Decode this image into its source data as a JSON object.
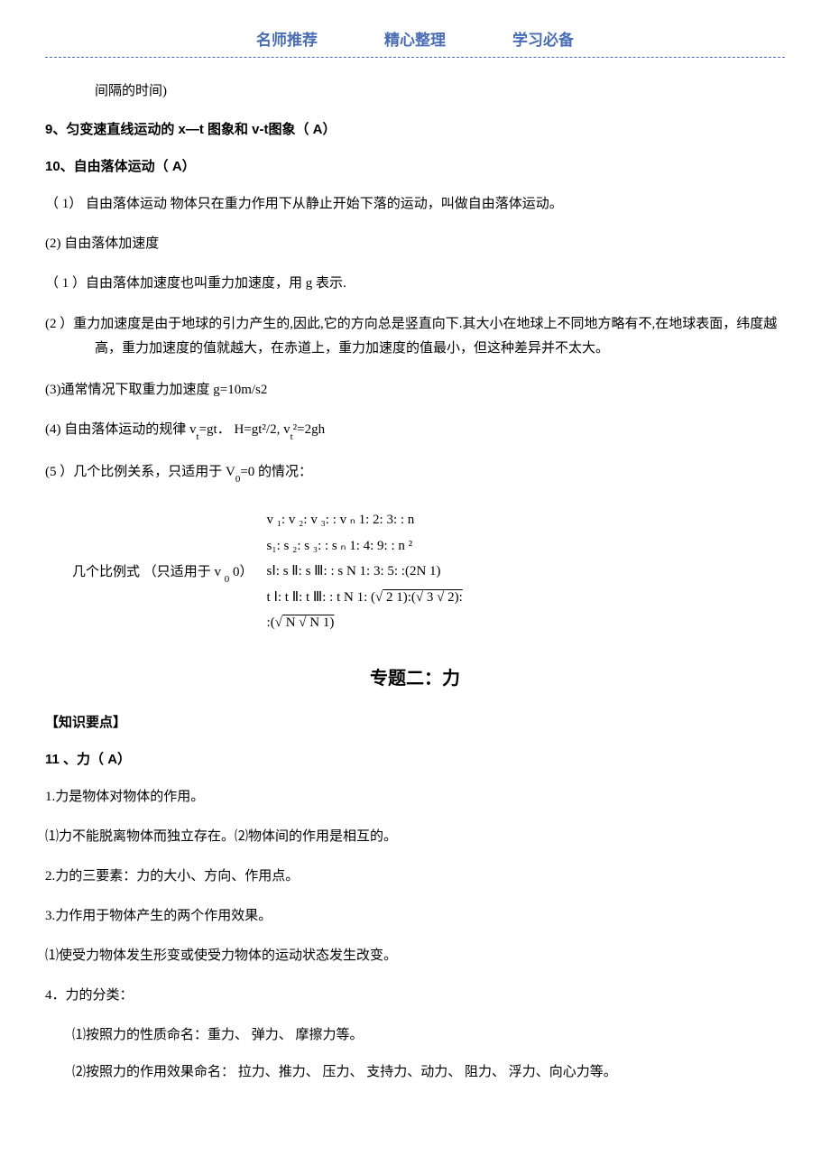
{
  "header": {
    "left": "名师推荐",
    "center": "精心整理",
    "right": "学习必备",
    "color": "#4a6db5"
  },
  "intro_fragment": "间隔的时间)",
  "s9_heading": "9、匀变速直线运动的 x—t 图象和 v-t图象（ A）",
  "s10_heading": "10、自由落体运动（ A）",
  "s10_items": {
    "i1": "（ 1）  自由落体运动 物体只在重力作用下从静止开始下落的运动，叫做自由落体运动。",
    "i2": "(2)   自由落体加速度",
    "i3": "（ 1 ）自由落体加速度也叫重力加速度，用 g 表示.",
    "i4": "(2 ）重力加速度是由于地球的引力产生的,因此,它的方向总是竖直向下.其大小在地球上不同地方略有不,在地球表面，纬度越高，重力加速度的值就越大，在赤道上，重力加速度的值最小，但这种差异并不太大。",
    "i5": "(3)通常情况下取重力加速度 g=10m/s2",
    "i6_prefix": "(4)   自由落体运动的规律 v",
    "i6_sub1": "t",
    "i6_mid": "=gt．  H=gt²/2, v",
    "i6_sub2": "t",
    "i6_suffix": "²=2gh",
    "i7_prefix": "(5 ）几个比例关系，只适用于 V",
    "i7_sub": "0",
    "i7_suffix": "=0 的情况："
  },
  "ratio": {
    "label_prefix": "几个比例式 （只适用于    v ",
    "label_sub": "0",
    "label_suffix": "    0）",
    "line1": "v ₁: v ₂: v ₃:   : v ₙ    1: 2: 3:   : n",
    "line2": "s₁: s ₂: s ₃:   : s ₙ    1: 4: 9:   : n ²",
    "line3": "sⅠ: s Ⅱ: s Ⅲ:   : s N    1: 3: 5:  :(2N   1)",
    "line4_prefix": "t Ⅰ: t Ⅱ: t Ⅲ:   : t N    1: (√",
    "line4_mid1": " 2   1):(√",
    "line4_mid2": " 3   √",
    "line4_suffix": " 2):",
    "line5_prefix": "       :(√",
    "line5_mid": " N   √",
    "line5_suffix": " N   1)"
  },
  "topic2_title": "专题二：力",
  "knowledge_heading": "【知识要点】",
  "s11_heading": "11 、力（ A）",
  "s11_items": {
    "i1": "1.力是物体对物体的作用。",
    "i2": "⑴力不能脱离物体而独立存在。⑵物体间的作用是相互的。",
    "i3": "2.力的三要素：力的大小、方向、作用点。",
    "i4": "3.力作用于物体产生的两个作用效果。",
    "i5": "⑴使受力物体发生形变或使受力物体的运动状态发生改变。",
    "i6": "4．力的分类：",
    "i7": "⑴按照力的性质命名：重力、 弹力、 摩擦力等。",
    "i8": "⑵按照力的作用效果命名：  拉力、推力、 压力、 支持力、动力、 阻力、 浮力、向心力等。"
  }
}
